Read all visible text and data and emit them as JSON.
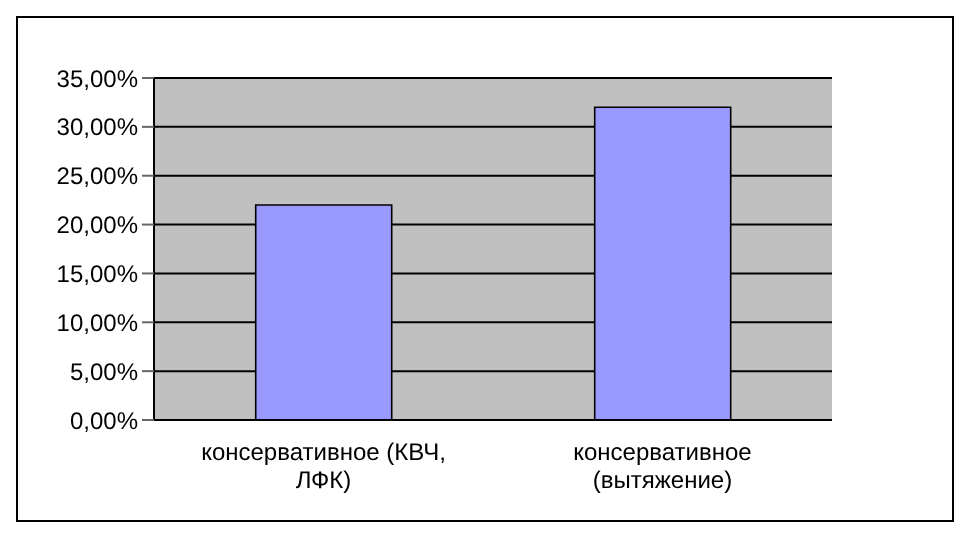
{
  "chart_data": {
    "type": "bar",
    "categories": [
      "консервативное (КВЧ, ЛФК)",
      "консервативное (вытяжение)"
    ],
    "values": [
      22,
      32
    ],
    "color": "#9999ff",
    "ylim": [
      0,
      35
    ],
    "yticks": [
      {
        "value": 0,
        "label": "0,00%"
      },
      {
        "value": 5,
        "label": "5,00%"
      },
      {
        "value": 10,
        "label": "10,00%"
      },
      {
        "value": 15,
        "label": "15,00%"
      },
      {
        "value": 20,
        "label": "20,00%"
      },
      {
        "value": 25,
        "label": "25,00%"
      },
      {
        "value": 30,
        "label": "30,00%"
      },
      {
        "value": 35,
        "label": "35,00%"
      }
    ],
    "grid": "y"
  }
}
